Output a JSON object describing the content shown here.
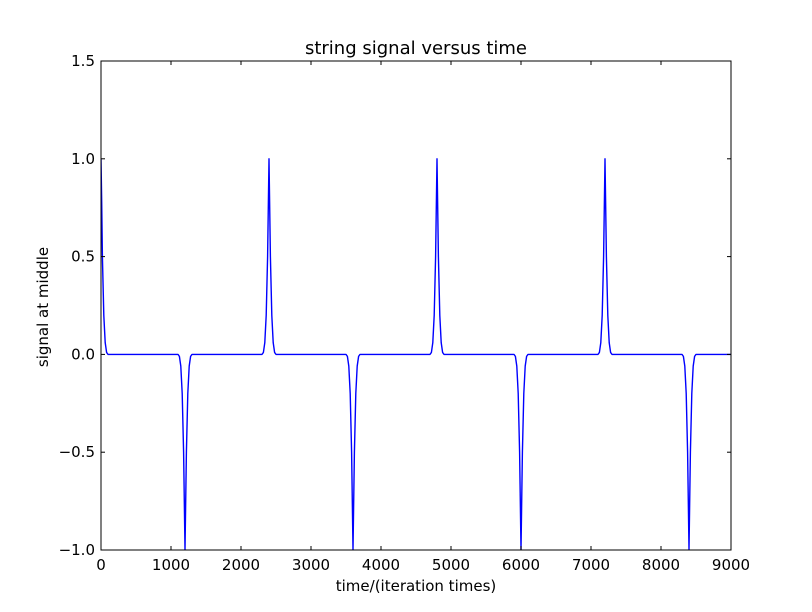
{
  "chart_data": {
    "type": "line",
    "title": "string signal versus time",
    "xlabel": "time/(iteration times)",
    "ylabel": "signal at middle",
    "xlim": [
      0,
      9000
    ],
    "ylim": [
      -1.0,
      1.5
    ],
    "x_ticks": [
      0,
      1000,
      2000,
      3000,
      4000,
      5000,
      6000,
      7000,
      8000,
      9000
    ],
    "x_tick_labels": [
      "0",
      "1000",
      "2000",
      "3000",
      "4000",
      "5000",
      "6000",
      "7000",
      "8000",
      "9000"
    ],
    "y_ticks": [
      -1.0,
      -0.5,
      0.0,
      0.5,
      1.0,
      1.5
    ],
    "y_tick_labels": [
      "−1.0",
      "−0.5",
      "0.0",
      "0.5",
      "1.0",
      "1.5"
    ],
    "grid": false,
    "series": [
      {
        "color": "#0000ff",
        "x": [
          0,
          10,
          20,
          40,
          60,
          80,
          100,
          1100,
          1120,
          1140,
          1160,
          1180,
          1200,
          1220,
          1240,
          1260,
          1280,
          1300,
          2300,
          2320,
          2340,
          2360,
          2380,
          2400,
          2420,
          2440,
          2460,
          2480,
          2500,
          3500,
          3520,
          3540,
          3560,
          3580,
          3600,
          3620,
          3640,
          3660,
          3680,
          3700,
          4700,
          4720,
          4740,
          4760,
          4780,
          4800,
          4820,
          4840,
          4860,
          4880,
          4900,
          5900,
          5920,
          5940,
          5960,
          5980,
          6000,
          6020,
          6040,
          6060,
          6080,
          6100,
          7100,
          7120,
          7140,
          7160,
          7180,
          7200,
          7220,
          7240,
          7260,
          7280,
          7300,
          8300,
          8320,
          8340,
          8360,
          8380,
          8400,
          8420,
          8440,
          8460,
          8480,
          8500,
          9000
        ],
        "y": [
          1.0,
          0.78,
          0.5,
          0.2,
          0.06,
          0.01,
          0.0,
          0.0,
          -0.01,
          -0.06,
          -0.2,
          -0.5,
          -1.0,
          -0.5,
          -0.2,
          -0.06,
          -0.01,
          0.0,
          0.0,
          0.01,
          0.06,
          0.2,
          0.5,
          1.0,
          0.5,
          0.2,
          0.06,
          0.01,
          0.0,
          0.0,
          -0.01,
          -0.06,
          -0.2,
          -0.5,
          -1.0,
          -0.5,
          -0.2,
          -0.06,
          -0.01,
          0.0,
          0.0,
          0.01,
          0.06,
          0.2,
          0.5,
          1.0,
          0.5,
          0.2,
          0.06,
          0.01,
          0.0,
          0.0,
          -0.01,
          -0.06,
          -0.2,
          -0.5,
          -1.0,
          -0.5,
          -0.2,
          -0.06,
          -0.01,
          0.0,
          0.0,
          0.01,
          0.06,
          0.2,
          0.5,
          1.0,
          0.5,
          0.2,
          0.06,
          0.01,
          0.0,
          0.0,
          -0.01,
          -0.06,
          -0.2,
          -0.5,
          -1.0,
          -0.5,
          -0.2,
          -0.06,
          -0.01,
          0.0,
          0.0
        ]
      }
    ]
  }
}
